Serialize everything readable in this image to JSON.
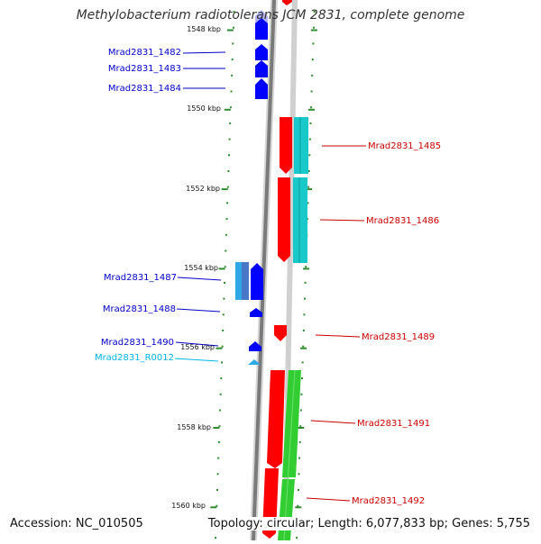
{
  "title": "Methylobacterium radiotolerans JCM 2831, complete genome",
  "accession": "Accession: NC_010505",
  "topology": "Topology: circular; Length: 6,077,833 bp; Genes: 5,755",
  "colors": {
    "blue": "#0000ff",
    "light_blue": "#b4b4ff",
    "red": "#ff0000",
    "cyan": "#19c8c8",
    "green": "#32cd32",
    "tick": "#2e8b2e",
    "backbone": "#7a7a7a",
    "label_blue": "#0000c8",
    "label_red": "#c80000",
    "label_cyan": "#00b4e6"
  },
  "scale_labels": [
    "1548 kbp",
    "1550 kbp",
    "1552 kbp",
    "1554 kbp",
    "1556 kbp",
    "1558 kbp",
    "1560 kbp"
  ],
  "left_genes": [
    "Mrad2831_1482",
    "Mrad2831_1483",
    "Mrad2831_1484",
    "Mrad2831_1487",
    "Mrad2831_1488",
    "Mrad2831_1490",
    "Mrad2831_R0012"
  ],
  "right_genes": [
    "Mrad2831_1485",
    "Mrad2831_1486",
    "Mrad2831_1489",
    "Mrad2831_1491",
    "Mrad2831_1492"
  ]
}
